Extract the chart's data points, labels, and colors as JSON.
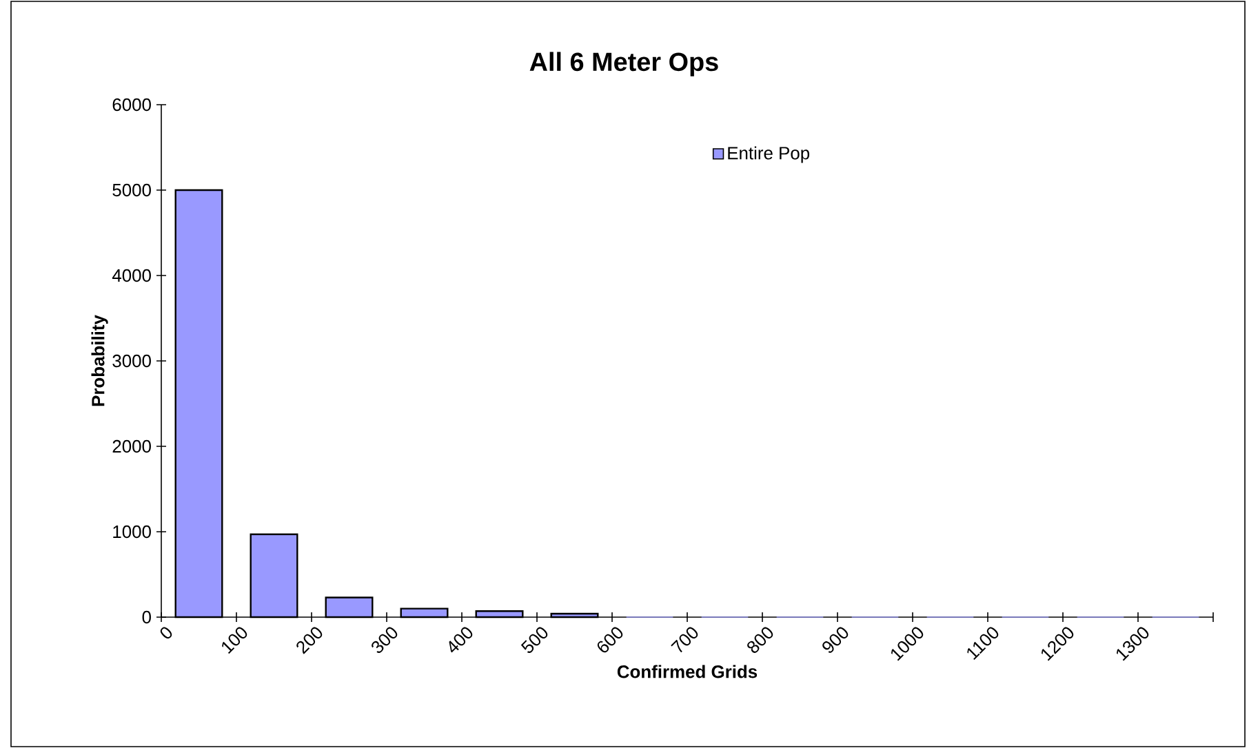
{
  "chart_data": {
    "type": "histogram",
    "title": "All 6 Meter Ops",
    "xlabel": "Confirmed Grids",
    "ylabel": "Probability",
    "bins": [
      0,
      100,
      200,
      300,
      400,
      500,
      600,
      700,
      800,
      900,
      1000,
      1100,
      1200,
      1300,
      1400
    ],
    "series": [
      {
        "name": "Entire Pop",
        "color": "#9999ff",
        "values": [
          5000,
          970,
          230,
          100,
          70,
          40,
          0,
          0,
          0,
          0,
          0,
          0,
          0,
          0
        ]
      }
    ],
    "xlim": [
      0,
      1400
    ],
    "ylim": [
      0,
      6000
    ],
    "xticks": [
      0,
      100,
      200,
      300,
      400,
      500,
      600,
      700,
      800,
      900,
      1000,
      1100,
      1200,
      1300,
      {
        "value": 1400,
        "label": null
      }
    ],
    "yticks": [
      0,
      1000,
      2000,
      3000,
      4000,
      5000,
      6000
    ],
    "legend": "top right",
    "grid": false
  }
}
